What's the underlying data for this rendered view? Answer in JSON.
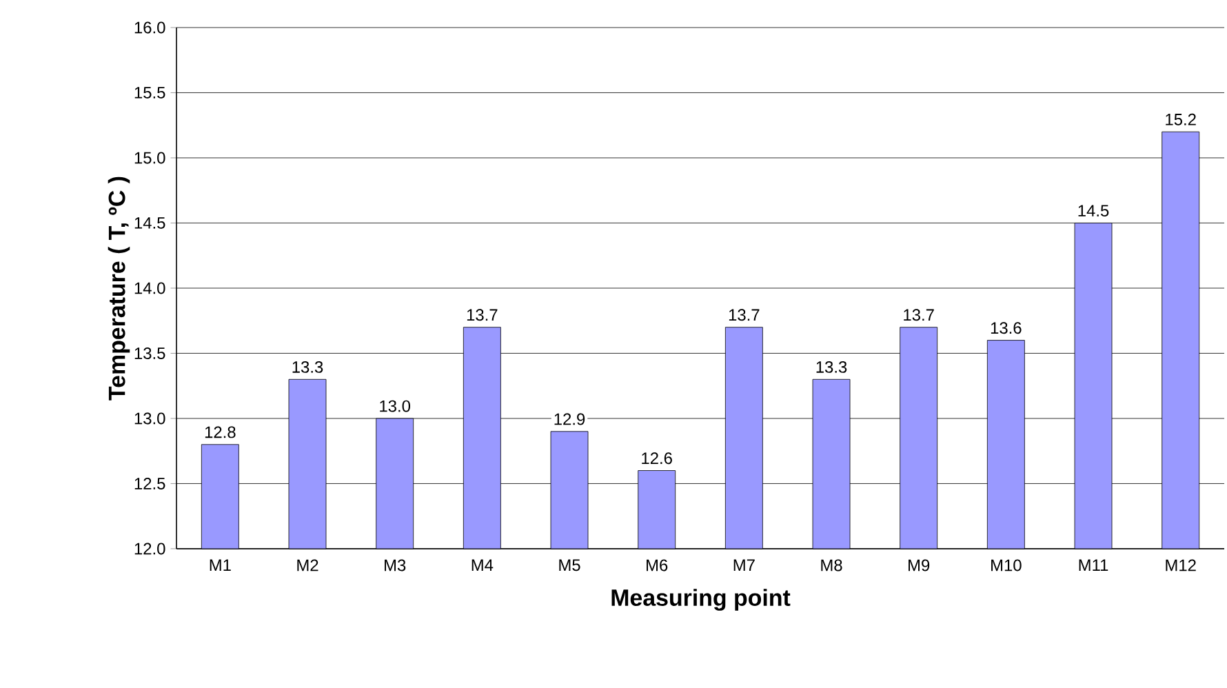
{
  "chart_data": {
    "type": "bar",
    "xlabel": "Measuring point",
    "ylabel": "Temperature ( T, ºC )",
    "categories": [
      "M1",
      "M2",
      "M3",
      "M4",
      "M5",
      "M6",
      "M7",
      "M8",
      "M9",
      "M10",
      "M11",
      "M12"
    ],
    "values": [
      12.8,
      13.3,
      13.0,
      13.7,
      12.9,
      12.6,
      13.7,
      13.3,
      13.7,
      13.6,
      14.5,
      15.2
    ],
    "value_labels": [
      "12.8",
      "13.3",
      "13.0",
      "13.7",
      "12.9",
      "12.6",
      "13.7",
      "13.3",
      "13.7",
      "13.6",
      "14.5",
      "15.2"
    ],
    "color": "#9999ff",
    "ylim": [
      12.0,
      16.0
    ],
    "yticks": [
      {
        "value": 12.0,
        "label": "12.0"
      },
      12.5,
      {
        "value": 13.0,
        "label": "13.0"
      },
      13.5,
      {
        "value": 14.0,
        "label": "14.0"
      },
      14.5,
      {
        "value": 15.0,
        "label": "15.0"
      },
      15.5,
      {
        "value": 16.0,
        "label": "16.0"
      }
    ],
    "grid": "y"
  }
}
